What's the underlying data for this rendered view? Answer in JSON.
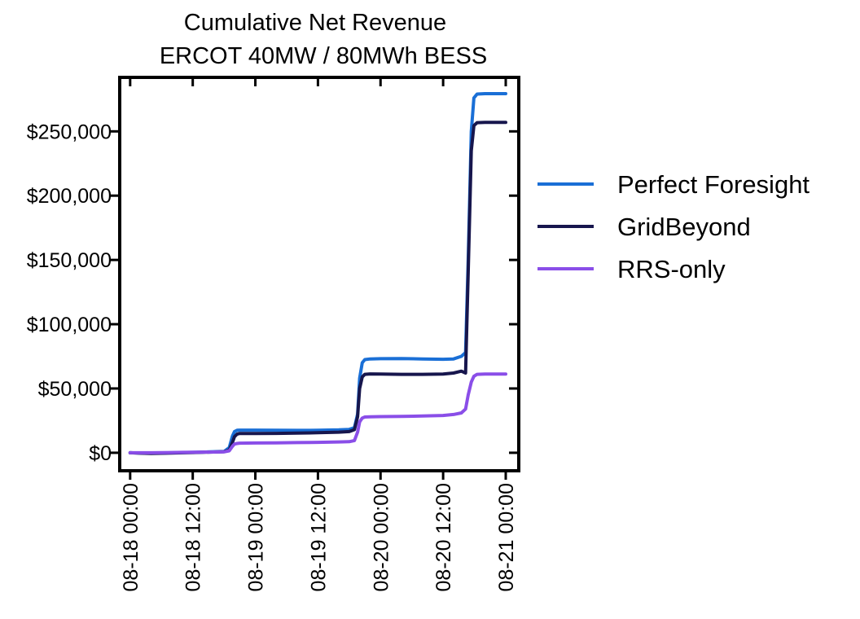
{
  "chart_data": {
    "type": "line",
    "title": [
      "Cumulative Net Revenue",
      "ERCOT 40MW / 80MWh BESS"
    ],
    "xlabel": "",
    "ylabel": "",
    "x_ticks": [
      "08-18 00:00",
      "08-18 12:00",
      "08-19 00:00",
      "08-19 12:00",
      "08-20 00:00",
      "08-20 12:00",
      "08-21 00:00"
    ],
    "x_tick_hours": [
      0,
      12,
      24,
      36,
      48,
      60,
      72
    ],
    "x_unit": "hours since 08-18 00:00",
    "xlim": [
      -2,
      74.5
    ],
    "ylim": [
      -14000,
      292000
    ],
    "y_ticks": [
      0,
      50000,
      100000,
      150000,
      200000,
      250000
    ],
    "y_tick_labels": [
      "$0",
      "$50,000",
      "$100,000",
      "$150,000",
      "$200,000",
      "$250,000"
    ],
    "legend_position": "right",
    "series": [
      {
        "name": "Perfect Foresight",
        "color": "#1a6fd6",
        "x": [
          0,
          2,
          4,
          6,
          8,
          10,
          12,
          14,
          16,
          18,
          19,
          19.6,
          20,
          20.5,
          21,
          24,
          28,
          32,
          36,
          40,
          42,
          43,
          43.6,
          44,
          44.5,
          45,
          46,
          48,
          52,
          56,
          60,
          62,
          63.5,
          64.3,
          64.8,
          65.4,
          65.9,
          66.5,
          68,
          70,
          72
        ],
        "values": [
          0,
          -200,
          -300,
          -200,
          0,
          200,
          300,
          500,
          800,
          1000,
          4000,
          13000,
          16500,
          17500,
          17600,
          17600,
          17500,
          17400,
          17500,
          17800,
          18200,
          19500,
          30000,
          58000,
          70000,
          72500,
          73000,
          73200,
          73300,
          73000,
          72700,
          73000,
          75000,
          78000,
          150000,
          250000,
          276000,
          279000,
          279300,
          279300,
          279300
        ]
      },
      {
        "name": "GridBeyond",
        "color": "#17164d",
        "x": [
          0,
          2,
          4,
          6,
          8,
          10,
          12,
          14,
          16,
          18,
          19,
          19.6,
          20,
          20.5,
          21,
          24,
          28,
          32,
          36,
          40,
          42,
          43,
          43.6,
          44,
          44.5,
          45,
          46,
          48,
          52,
          56,
          60,
          62,
          63.5,
          64.3,
          64.8,
          65.4,
          65.9,
          66.5,
          68,
          70,
          72
        ],
        "values": [
          0,
          -300,
          -500,
          -400,
          -200,
          0,
          200,
          400,
          600,
          800,
          2000,
          8000,
          12500,
          14500,
          15000,
          15000,
          15100,
          15300,
          15600,
          16000,
          16500,
          18000,
          28000,
          50000,
          59000,
          61000,
          61300,
          61200,
          61000,
          61000,
          61200,
          62000,
          63500,
          62000,
          140000,
          235000,
          254500,
          256800,
          257000,
          257000,
          257000
        ]
      },
      {
        "name": "RRS-only",
        "color": "#8a4ee8",
        "x": [
          0,
          2,
          4,
          6,
          8,
          10,
          12,
          14,
          16,
          18,
          19,
          19.6,
          20,
          20.5,
          21,
          24,
          28,
          32,
          36,
          40,
          42,
          43,
          43.6,
          44,
          44.5,
          45,
          46,
          48,
          52,
          56,
          60,
          62,
          63.5,
          64.3,
          64.8,
          65.4,
          65.9,
          66.5,
          68,
          70,
          72
        ],
        "values": [
          0,
          0,
          0,
          100,
          200,
          300,
          400,
          500,
          600,
          700,
          1500,
          5000,
          6800,
          7200,
          7500,
          7600,
          7700,
          7900,
          8100,
          8400,
          8600,
          9500,
          16000,
          24000,
          27000,
          27800,
          28000,
          28100,
          28300,
          28600,
          29000,
          29800,
          31000,
          34000,
          45000,
          55000,
          59500,
          61000,
          61200,
          61200,
          61200
        ]
      }
    ]
  }
}
